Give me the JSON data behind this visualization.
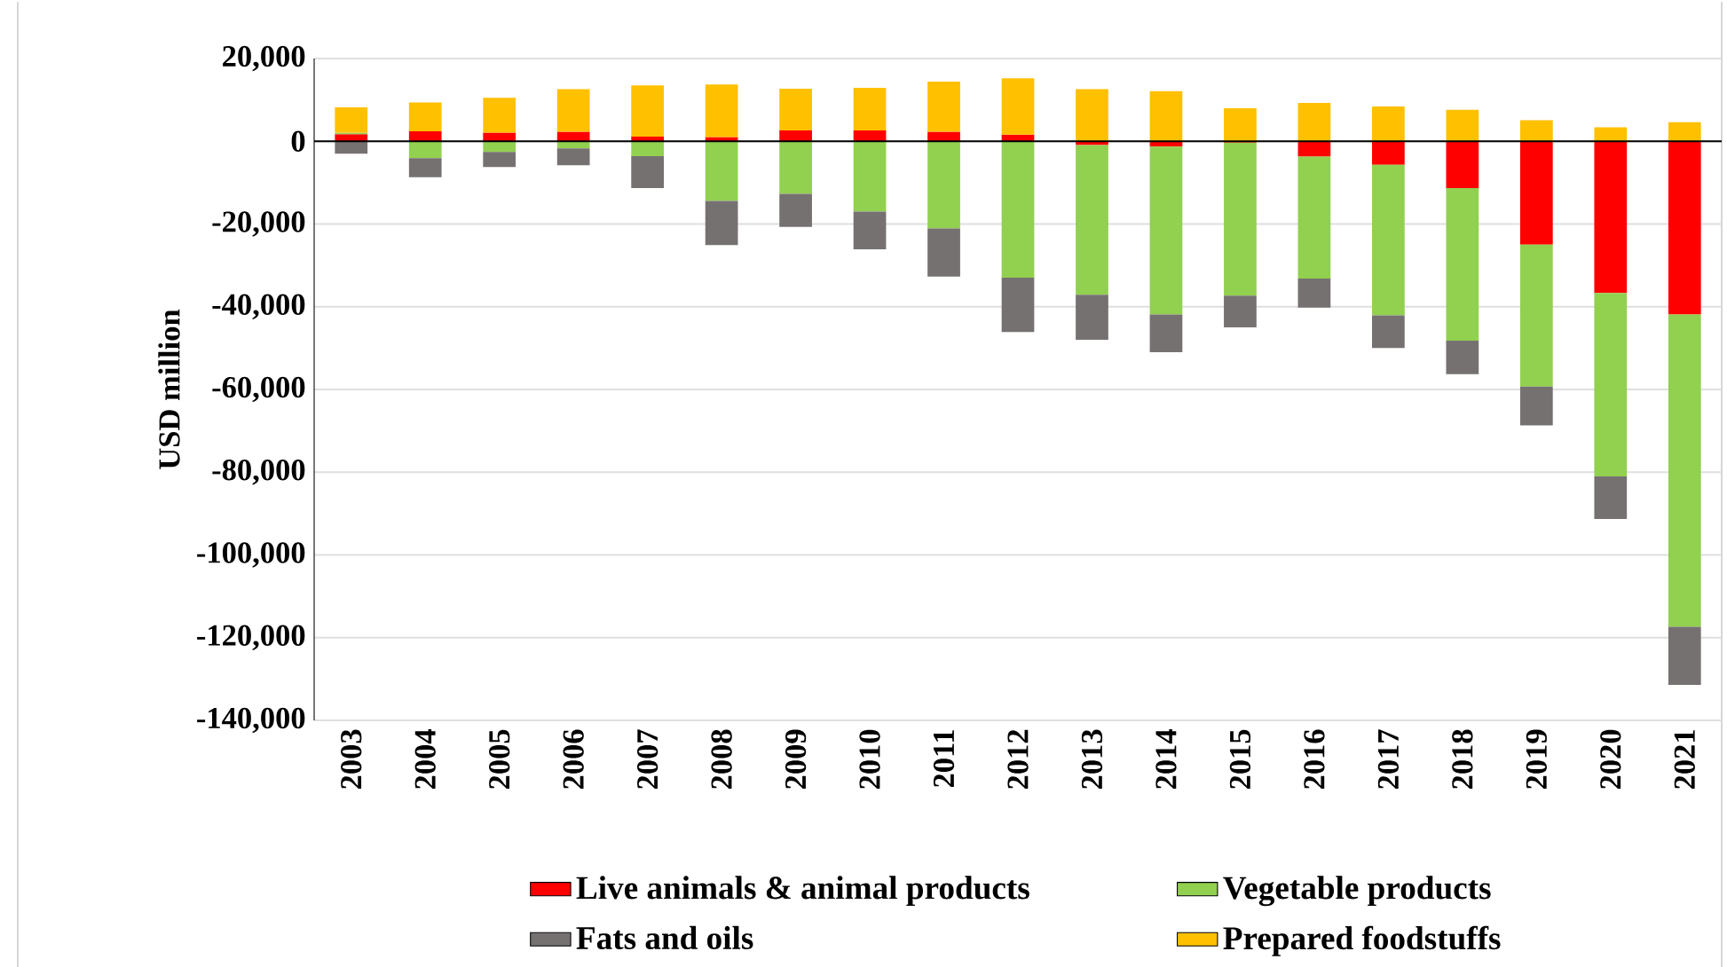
{
  "chart_data": {
    "type": "bar",
    "stacked": true,
    "ylabel": "USD million",
    "categories": [
      "2003",
      "2004",
      "2005",
      "2006",
      "2007",
      "2008",
      "2009",
      "2010",
      "2011",
      "2012",
      "2013",
      "2014",
      "2015",
      "2016",
      "2017",
      "2018",
      "2019",
      "2020",
      "2021"
    ],
    "series": [
      {
        "name": "Live animals & animal products",
        "color": "#ff0000",
        "values": [
          1700,
          2400,
          2100,
          2300,
          1100,
          1000,
          2600,
          2600,
          2300,
          1600,
          -900,
          -1300,
          -300,
          -3700,
          -5700,
          -11300,
          -25000,
          -36700,
          -41900
        ]
      },
      {
        "name": "Vegetable products",
        "color": "#92d050",
        "values": [
          400,
          -4100,
          -2600,
          -1700,
          -3600,
          -14400,
          -12700,
          -17000,
          -21100,
          -33000,
          -36200,
          -40600,
          -37000,
          -29500,
          -36400,
          -36900,
          -34300,
          -44300,
          -75500
        ]
      },
      {
        "name": "Fats and oils",
        "color": "#767171",
        "values": [
          -3000,
          -4600,
          -3600,
          -4100,
          -7700,
          -10700,
          -8000,
          -9100,
          -11600,
          -13100,
          -10900,
          -9100,
          -7700,
          -7000,
          -7900,
          -8100,
          -9400,
          -10300,
          -14000
        ]
      },
      {
        "name": "Prepared foodstuffs",
        "color": "#ffc000",
        "values": [
          6100,
          7000,
          8400,
          10300,
          12400,
          12700,
          10100,
          10300,
          12100,
          13600,
          12600,
          12100,
          8000,
          9300,
          8400,
          7600,
          5100,
          3400,
          4600
        ]
      }
    ],
    "ylim": [
      -140000,
      20000
    ],
    "yticks": [
      {
        "value": -140000,
        "label": "-140,000"
      },
      {
        "value": -120000,
        "label": "-120,000"
      },
      {
        "value": -100000,
        "label": "-100,000"
      },
      {
        "value": -80000,
        "label": "-80,000"
      },
      {
        "value": -60000,
        "label": "-60,000"
      },
      {
        "value": -40000,
        "label": "-40,000"
      },
      {
        "value": -20000,
        "label": "-20,000"
      },
      {
        "value": 0,
        "label": "0"
      },
      {
        "value": 20000,
        "label": "20,000"
      }
    ],
    "grid": "y",
    "legend": "bottom"
  }
}
